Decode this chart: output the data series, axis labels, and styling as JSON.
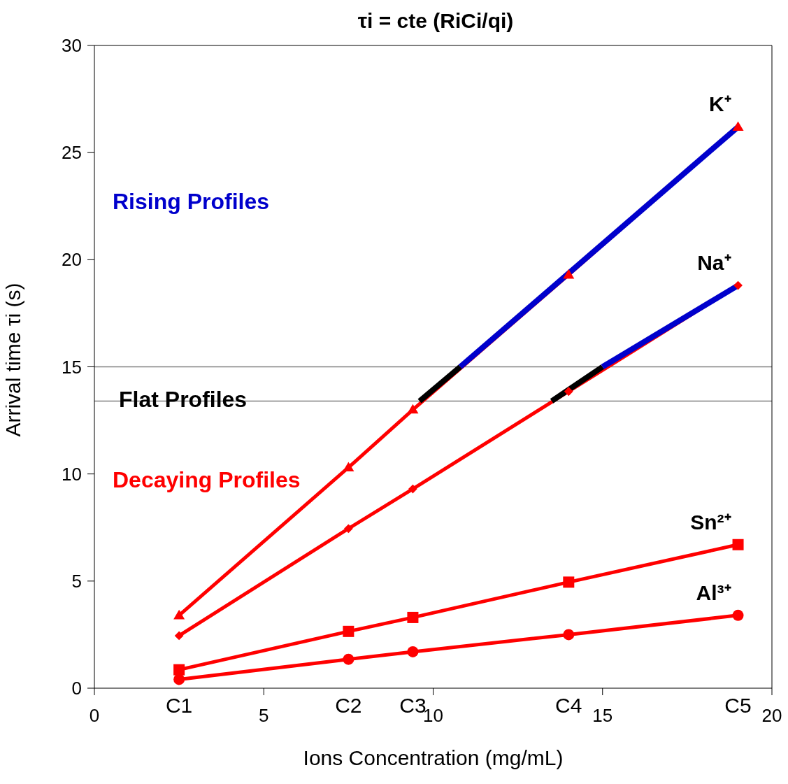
{
  "chart_data": {
    "type": "line",
    "title": "τi = cte (RiCi/qi)",
    "xlabel": "Ions Concentration (mg/mL)",
    "ylabel": "Arrival time τi (s)",
    "x": [
      2.5,
      7.5,
      9.4,
      14,
      19
    ],
    "xlim": [
      0,
      20
    ],
    "xticks": [
      0,
      5,
      10,
      15,
      20
    ],
    "ylim": [
      0,
      30
    ],
    "yticks": [
      0,
      5,
      10,
      15,
      20,
      25,
      30
    ],
    "line_style": "solid",
    "series": [
      {
        "name": "K⁺",
        "color": "#ff0000",
        "marker": "triangle",
        "values": [
          3.4,
          10.3,
          13.0,
          19.3,
          26.2
        ]
      },
      {
        "name": "Na⁺",
        "color": "#ff0000",
        "marker": "diamond",
        "values": [
          2.45,
          7.45,
          9.3,
          13.85,
          18.8
        ]
      },
      {
        "name": "Sn²⁺",
        "color": "#ff0000",
        "marker": "square",
        "values": [
          0.86,
          2.65,
          3.3,
          4.95,
          6.7
        ]
      },
      {
        "name": "Al³⁺",
        "color": "#ff0000",
        "marker": "circle",
        "values": [
          0.41,
          1.35,
          1.7,
          2.5,
          3.4
        ]
      },
      {
        "color": "#000000",
        "marker": "none",
        "x": [
          9.6,
          10.8
        ],
        "values": [
          13.4,
          15
        ]
      },
      {
        "color": "#0000cc",
        "marker": "none",
        "x": [
          10.8,
          19
        ],
        "values": [
          15,
          26.2
        ]
      },
      {
        "color": "#000000",
        "marker": "none",
        "x": [
          13.5,
          15
        ],
        "values": [
          13.4,
          15
        ]
      },
      {
        "color": "#0000cc",
        "marker": "none",
        "x": [
          15,
          19
        ],
        "values": [
          15,
          18.8
        ]
      }
    ],
    "ref_lines": [
      {
        "axis": "y",
        "value": 15,
        "color": "#808080"
      },
      {
        "axis": "y",
        "value": 13.4,
        "color": "#808080"
      }
    ],
    "annotations": [
      "Rising Profiles",
      "Flat Profiles",
      "Decaying Profiles",
      "C1",
      "C2",
      "C3",
      "C4",
      "C5"
    ]
  }
}
